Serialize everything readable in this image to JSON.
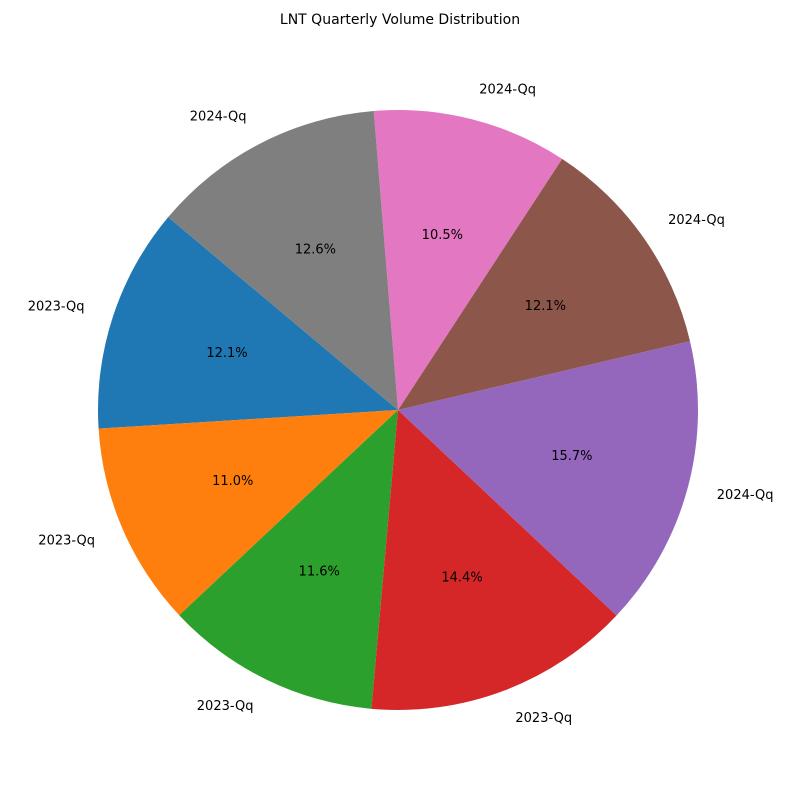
{
  "chart_data": {
    "type": "pie",
    "title": "LNT Quarterly Volume Distribution",
    "start_angle": 140,
    "direction": "counterclockwise",
    "slices": [
      {
        "label": "2023-Qq",
        "value": 12.1,
        "pct_text": "12.1%",
        "color": "#1f77b4"
      },
      {
        "label": "2023-Qq",
        "value": 11.0,
        "pct_text": "11.0%",
        "color": "#ff7f0e"
      },
      {
        "label": "2023-Qq",
        "value": 11.6,
        "pct_text": "11.6%",
        "color": "#2ca02c"
      },
      {
        "label": "2023-Qq",
        "value": 14.4,
        "pct_text": "14.4%",
        "color": "#d62728"
      },
      {
        "label": "2024-Qq",
        "value": 15.7,
        "pct_text": "15.7%",
        "color": "#9467bd"
      },
      {
        "label": "2024-Qq",
        "value": 12.1,
        "pct_text": "12.1%",
        "color": "#8c564b"
      },
      {
        "label": "2024-Qq",
        "value": 10.5,
        "pct_text": "10.5%",
        "color": "#e377c2"
      },
      {
        "label": "2024-Qq",
        "value": 12.6,
        "pct_text": "12.6%",
        "color": "#7f7f7f"
      }
    ]
  }
}
